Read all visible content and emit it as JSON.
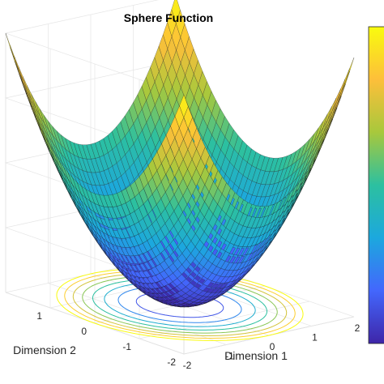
{
  "chart_data": {
    "type": "surface",
    "title": "Sphere Function",
    "function": "f(x1,x2) = x1^2 + x2^2",
    "xlabel": "Dimension 1",
    "ylabel": "Dimension 2",
    "zlabel": "",
    "x_range": [
      -2,
      2
    ],
    "y_range": [
      -2,
      2
    ],
    "x_ticks": [
      "-2",
      "-1",
      "0",
      "1",
      "2"
    ],
    "y_ticks": [
      "-2",
      "-1",
      "0",
      "1"
    ],
    "grid_points": 41,
    "contour_levels": [
      0.5,
      1,
      1.5,
      2,
      2.5,
      3,
      3.5,
      4
    ],
    "colormap": "parula",
    "colorbar": true,
    "grid": true,
    "colors": {
      "colormap_stops": [
        "#3e26a8",
        "#4367fd",
        "#1ca8de",
        "#2cc0a0",
        "#a8c83c",
        "#fdbf3a",
        "#f9fb0e"
      ],
      "mesh_edge": "#1a1a1a"
    }
  }
}
